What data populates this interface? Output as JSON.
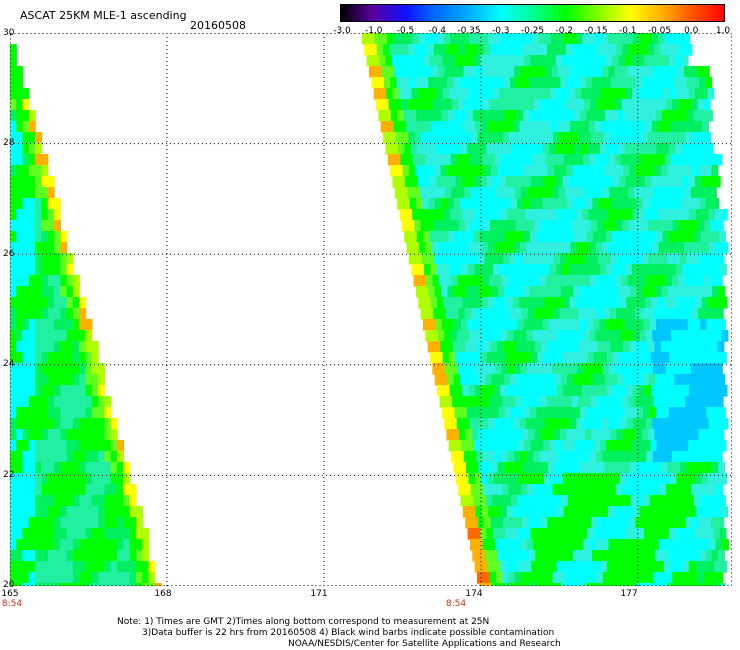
{
  "header": {
    "title": "ASCAT 25KM MLE-1 ascending",
    "date": "20160508"
  },
  "colorbar": {
    "labels": [
      "-3.0",
      "-1.0",
      "-0.5",
      "-0.4",
      "-0.35",
      "-0.3",
      "-0.25",
      "-0.2",
      "-0.15",
      "-0.1",
      "-0.05",
      "0.0",
      "1.0"
    ],
    "colors": [
      "#000000",
      "#5a00a0",
      "#1010ff",
      "#0070ff",
      "#00b0ff",
      "#00ffff",
      "#00ff90",
      "#00ff00",
      "#80ff00",
      "#ffff00",
      "#ffb000",
      "#ff5000",
      "#ff0000"
    ]
  },
  "map": {
    "lat_range": [
      20,
      30
    ],
    "lon_range": [
      165,
      178.8
    ],
    "lat_labels": [
      "30",
      "28",
      "26",
      "24",
      "22",
      "20"
    ],
    "lon_labels": [
      "165",
      "168",
      "171",
      "174",
      "177"
    ],
    "time_labels": [
      "8:54",
      "8:54"
    ]
  },
  "notes": {
    "line1": "Note: 1) Times are GMT 2)Times along bottom correspond to measurement at 25N",
    "line2": "3)Data buffer is 22 hrs from 20160508 4) Black wind barbs indicate possible contamination",
    "line3": "NOAA/NESDIS/Center for Satellite Applications and Research"
  }
}
